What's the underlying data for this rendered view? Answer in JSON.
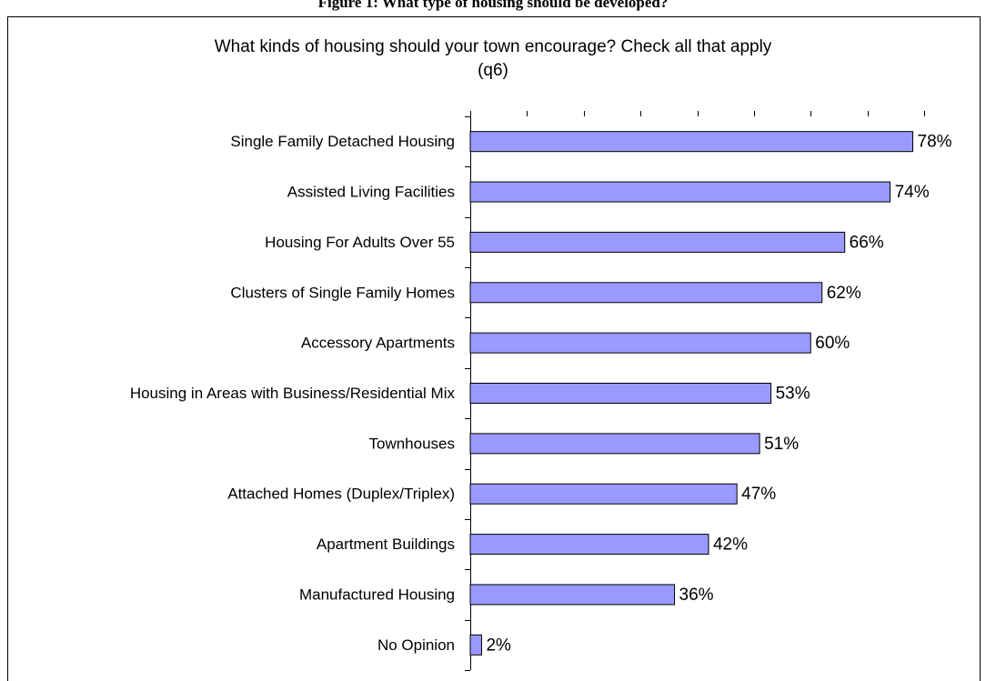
{
  "caption": "Figure 1: What type of housing should be developed?",
  "chart_data": {
    "type": "bar",
    "orientation": "horizontal",
    "title": [
      "What kinds of housing should your town encourage? Check all that apply",
      "(q6)"
    ],
    "categories": [
      "Single Family Detached Housing",
      "Assisted Living Facilities",
      "Housing For Adults Over 55",
      "Clusters of Single Family Homes",
      "Accessory Apartments",
      "Housing in Areas with Business/Residential Mix",
      "Townhouses",
      "Attached Homes (Duplex/Triplex)",
      "Apartment Buildings",
      "Manufactured Housing",
      "No Opinion"
    ],
    "values": [
      78,
      74,
      66,
      62,
      60,
      53,
      51,
      47,
      42,
      36,
      2
    ],
    "value_labels": [
      "78%",
      "74%",
      "66%",
      "62%",
      "60%",
      "53%",
      "51%",
      "47%",
      "42%",
      "36%",
      "2%"
    ],
    "color": "#9999ff",
    "xlim": [
      0,
      80
    ],
    "xticks": [
      0,
      10,
      20,
      30,
      40,
      50,
      60,
      70,
      80
    ],
    "grid": false
  }
}
